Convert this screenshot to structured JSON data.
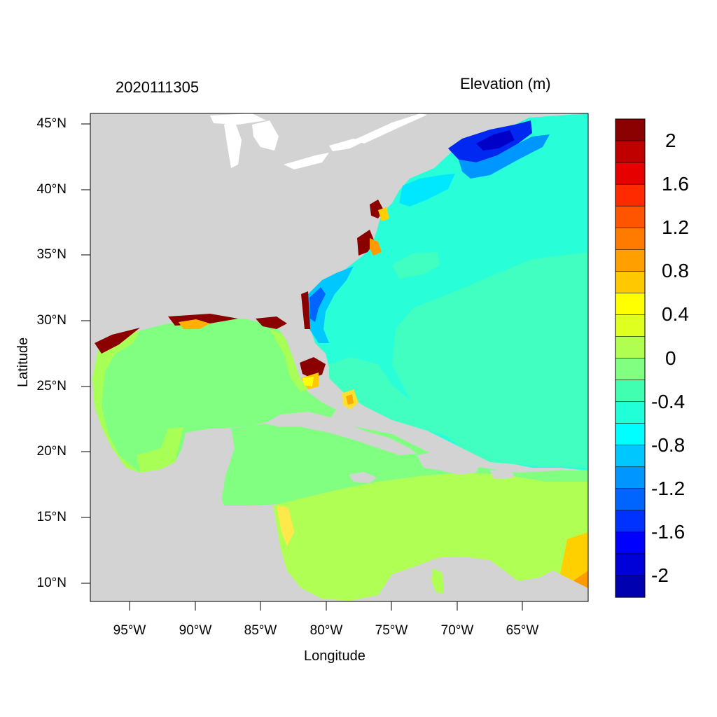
{
  "title_left": "2020111305",
  "title_right": "Elevation (m)",
  "x_axis_label": "Longitude",
  "y_axis_label": "Latitude",
  "lat_ticks": [
    "45°N",
    "40°N",
    "35°N",
    "30°N",
    "25°N",
    "20°N",
    "15°N",
    "10°N"
  ],
  "lon_ticks": [
    "95°W",
    "90°W",
    "85°W",
    "80°W",
    "75°W",
    "70°W",
    "65°W"
  ],
  "colorbar": {
    "labels": [
      "2",
      "1.6",
      "1.2",
      "0.8",
      "0.4",
      "0",
      "-0.4",
      "-0.8",
      "-1.2",
      "-1.6",
      "-2"
    ],
    "colors_top_to_bottom": [
      "#8b0000",
      "#c00000",
      "#e60000",
      "#ff2a00",
      "#ff5500",
      "#ff7b00",
      "#ff9f00",
      "#ffc800",
      "#ffff00",
      "#dfff20",
      "#b0ff50",
      "#80ff80",
      "#40ffb0",
      "#20ffd8",
      "#00ffff",
      "#00c8ff",
      "#0096ff",
      "#0064ff",
      "#0032ff",
      "#0000ff",
      "#0000d8",
      "#0000b0"
    ]
  },
  "colors": {
    "land": "#d3d3d3",
    "water_white": "#ffffff",
    "atlantic": "#40ffc4",
    "atlantic_teal": "#28ffd0",
    "gulf": "#80ff80",
    "caribbean": "#b0ff55",
    "low_blue": "#00b4ff"
  }
}
